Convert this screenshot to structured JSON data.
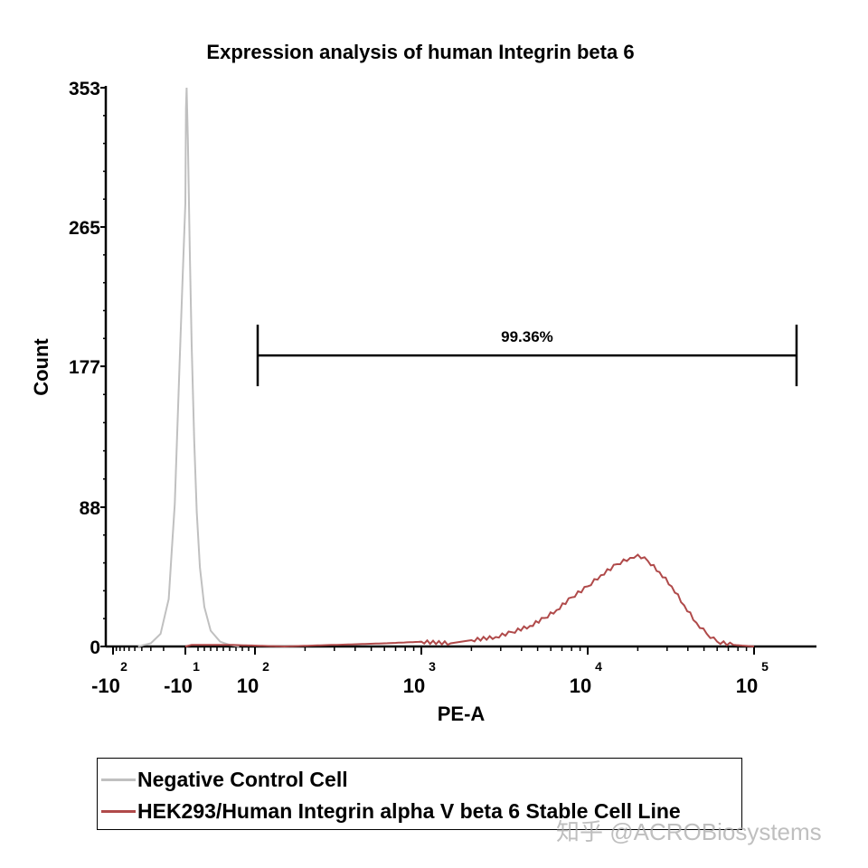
{
  "chart_data": {
    "type": "line",
    "title": "Expression analysis of human Integrin beta 6",
    "xlabel": "PE-A",
    "ylabel": "Count",
    "x_scale": "biexponential",
    "x_ticks": [
      {
        "value": -100,
        "base": "-10",
        "exp": "2"
      },
      {
        "value": -10,
        "base": "-10",
        "exp": "1"
      },
      {
        "value": 100,
        "base": "10",
        "exp": "2"
      },
      {
        "value": 1000,
        "base": "10",
        "exp": "3"
      },
      {
        "value": 10000,
        "base": "10",
        "exp": "4"
      },
      {
        "value": 100000,
        "base": "10",
        "exp": "5"
      }
    ],
    "y_ticks": [
      0,
      88,
      177,
      265,
      353
    ],
    "ylim": [
      0,
      353
    ],
    "grid": false,
    "legend_position": "bottom",
    "series": [
      {
        "name": "Negative Control Cell",
        "color": "#c0c0c0",
        "points": [
          [
            -45,
            0
          ],
          [
            -30,
            2
          ],
          [
            -22,
            8
          ],
          [
            -17,
            30
          ],
          [
            -14,
            90
          ],
          [
            -12,
            180
          ],
          [
            -10,
            280
          ],
          [
            -9,
            340
          ],
          [
            -8,
            353
          ],
          [
            -6,
            320
          ],
          [
            -3,
            250
          ],
          [
            0,
            190
          ],
          [
            4,
            130
          ],
          [
            8,
            85
          ],
          [
            13,
            50
          ],
          [
            20,
            25
          ],
          [
            30,
            10
          ],
          [
            45,
            3
          ],
          [
            60,
            1
          ],
          [
            75,
            0
          ]
        ]
      },
      {
        "name": "HEK293/Human Integrin alpha V beta 6 Stable Cell Line",
        "color": "#b04a4a",
        "points": [
          [
            -10,
            0
          ],
          [
            0,
            1
          ],
          [
            60,
            1
          ],
          [
            150,
            0
          ],
          [
            300,
            1
          ],
          [
            600,
            2
          ],
          [
            1000,
            3
          ],
          [
            1500,
            2
          ],
          [
            2000,
            4
          ],
          [
            2800,
            6
          ],
          [
            3500,
            9
          ],
          [
            4500,
            13
          ],
          [
            5500,
            18
          ],
          [
            6500,
            23
          ],
          [
            8000,
            31
          ],
          [
            10000,
            38
          ],
          [
            12000,
            45
          ],
          [
            15000,
            52
          ],
          [
            18000,
            56
          ],
          [
            20000,
            58
          ],
          [
            23000,
            54
          ],
          [
            27000,
            47
          ],
          [
            32000,
            38
          ],
          [
            38000,
            26
          ],
          [
            45000,
            15
          ],
          [
            52000,
            8
          ],
          [
            60000,
            3
          ],
          [
            75000,
            1
          ],
          [
            100000,
            0
          ]
        ]
      }
    ],
    "gate": {
      "from": 100,
      "to": 180000,
      "y": 177,
      "label": "99.36%"
    }
  },
  "watermark": "知乎 @ACROBiosystems"
}
